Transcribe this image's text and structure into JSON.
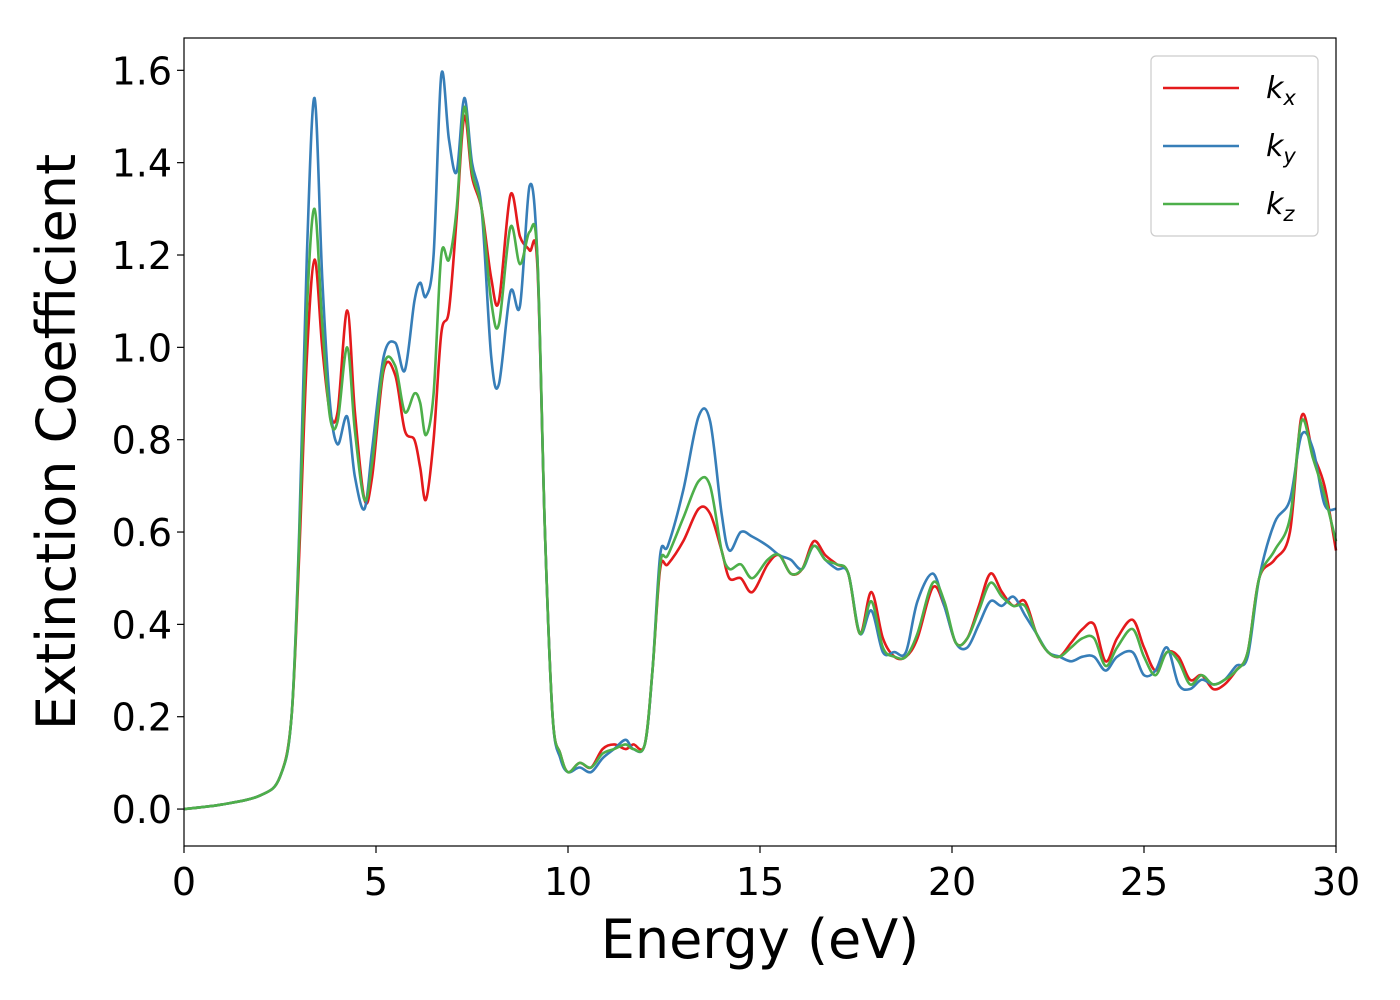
{
  "chart_data": {
    "type": "line",
    "title": "",
    "xlabel": "Energy (eV)",
    "ylabel": "Extinction Coefficient",
    "xlim": [
      0,
      30
    ],
    "ylim": [
      -0.08,
      1.67
    ],
    "xticks": [
      0,
      5,
      10,
      15,
      20,
      25,
      30
    ],
    "xtick_labels": [
      "0",
      "5",
      "10",
      "15",
      "20",
      "25",
      "30"
    ],
    "yticks": [
      0.0,
      0.2,
      0.4,
      0.6,
      0.8,
      1.0,
      1.2,
      1.4,
      1.6
    ],
    "ytick_labels": [
      "0.0",
      "0.2",
      "0.4",
      "0.6",
      "0.8",
      "1.0",
      "1.2",
      "1.4",
      "1.6"
    ],
    "grid": false,
    "legend_position": "top-right",
    "series": [
      {
        "name": "k_x",
        "label_main": "k",
        "label_sub": "x",
        "color": "#e41a1c",
        "x": [
          0,
          1,
          2,
          2.5,
          2.8,
          3.0,
          3.2,
          3.4,
          3.6,
          3.8,
          4.0,
          4.25,
          4.45,
          4.7,
          4.9,
          5.2,
          5.5,
          5.75,
          6.0,
          6.15,
          6.3,
          6.5,
          6.7,
          6.9,
          7.1,
          7.3,
          7.5,
          7.75,
          8.0,
          8.2,
          8.5,
          8.75,
          9.0,
          9.2,
          9.4,
          9.6,
          9.8,
          10.0,
          10.3,
          10.6,
          10.9,
          11.2,
          11.5,
          11.7,
          12.0,
          12.2,
          12.4,
          12.6,
          13.0,
          13.4,
          13.7,
          14.0,
          14.2,
          14.5,
          14.8,
          15.2,
          15.5,
          15.8,
          16.1,
          16.4,
          16.7,
          17.0,
          17.3,
          17.6,
          17.9,
          18.2,
          18.5,
          18.8,
          19.1,
          19.5,
          19.8,
          20.1,
          20.4,
          20.7,
          21.0,
          21.3,
          21.6,
          21.9,
          22.2,
          22.5,
          22.8,
          23.1,
          23.4,
          23.7,
          24.0,
          24.3,
          24.7,
          25.0,
          25.3,
          25.6,
          25.9,
          26.2,
          26.5,
          26.8,
          27.1,
          27.4,
          27.7,
          28.0,
          28.4,
          28.8,
          29.1,
          29.4,
          29.7,
          30.0
        ],
        "values": [
          0.0,
          0.01,
          0.03,
          0.07,
          0.2,
          0.55,
          0.98,
          1.19,
          1.0,
          0.86,
          0.86,
          1.08,
          0.86,
          0.67,
          0.72,
          0.95,
          0.94,
          0.82,
          0.8,
          0.74,
          0.67,
          0.8,
          1.03,
          1.08,
          1.28,
          1.5,
          1.37,
          1.3,
          1.15,
          1.1,
          1.33,
          1.24,
          1.21,
          1.18,
          0.6,
          0.2,
          0.12,
          0.08,
          0.1,
          0.09,
          0.13,
          0.14,
          0.13,
          0.14,
          0.14,
          0.3,
          0.52,
          0.53,
          0.58,
          0.65,
          0.64,
          0.56,
          0.5,
          0.5,
          0.47,
          0.53,
          0.55,
          0.51,
          0.52,
          0.58,
          0.55,
          0.53,
          0.51,
          0.38,
          0.47,
          0.37,
          0.33,
          0.33,
          0.37,
          0.48,
          0.44,
          0.36,
          0.37,
          0.44,
          0.51,
          0.47,
          0.44,
          0.45,
          0.38,
          0.34,
          0.33,
          0.36,
          0.39,
          0.4,
          0.32,
          0.37,
          0.41,
          0.35,
          0.3,
          0.34,
          0.33,
          0.28,
          0.29,
          0.26,
          0.27,
          0.3,
          0.34,
          0.5,
          0.54,
          0.6,
          0.85,
          0.77,
          0.7,
          0.56
        ]
      },
      {
        "name": "k_y",
        "label_main": "k",
        "label_sub": "y",
        "color": "#377eb8",
        "x": [
          0,
          1,
          2,
          2.5,
          2.8,
          3.0,
          3.2,
          3.4,
          3.6,
          3.8,
          4.0,
          4.25,
          4.45,
          4.7,
          4.9,
          5.2,
          5.5,
          5.75,
          6.0,
          6.15,
          6.3,
          6.5,
          6.7,
          6.9,
          7.1,
          7.3,
          7.5,
          7.75,
          8.0,
          8.2,
          8.5,
          8.75,
          9.0,
          9.2,
          9.4,
          9.6,
          9.8,
          10.0,
          10.3,
          10.6,
          10.9,
          11.2,
          11.5,
          11.7,
          12.0,
          12.2,
          12.4,
          12.6,
          13.0,
          13.4,
          13.7,
          14.0,
          14.2,
          14.5,
          14.8,
          15.2,
          15.5,
          15.8,
          16.1,
          16.4,
          16.7,
          17.0,
          17.3,
          17.6,
          17.9,
          18.2,
          18.5,
          18.8,
          19.1,
          19.5,
          19.8,
          20.1,
          20.4,
          20.7,
          21.0,
          21.3,
          21.6,
          21.9,
          22.2,
          22.5,
          22.8,
          23.1,
          23.4,
          23.7,
          24.0,
          24.3,
          24.7,
          25.0,
          25.3,
          25.6,
          25.9,
          26.2,
          26.5,
          26.8,
          27.1,
          27.4,
          27.7,
          28.0,
          28.4,
          28.8,
          29.1,
          29.4,
          29.7,
          30.0
        ],
        "values": [
          0.0,
          0.01,
          0.03,
          0.07,
          0.2,
          0.6,
          1.2,
          1.54,
          1.15,
          0.88,
          0.79,
          0.85,
          0.72,
          0.65,
          0.78,
          0.98,
          1.01,
          0.95,
          1.1,
          1.14,
          1.11,
          1.2,
          1.59,
          1.45,
          1.38,
          1.54,
          1.4,
          1.3,
          0.98,
          0.92,
          1.12,
          1.09,
          1.35,
          1.2,
          0.6,
          0.2,
          0.11,
          0.08,
          0.09,
          0.08,
          0.11,
          0.13,
          0.15,
          0.13,
          0.14,
          0.3,
          0.55,
          0.57,
          0.69,
          0.85,
          0.84,
          0.64,
          0.56,
          0.6,
          0.59,
          0.57,
          0.55,
          0.54,
          0.52,
          0.57,
          0.54,
          0.52,
          0.51,
          0.38,
          0.43,
          0.34,
          0.34,
          0.34,
          0.45,
          0.51,
          0.44,
          0.36,
          0.35,
          0.4,
          0.45,
          0.44,
          0.46,
          0.42,
          0.38,
          0.34,
          0.33,
          0.32,
          0.33,
          0.33,
          0.3,
          0.33,
          0.34,
          0.29,
          0.3,
          0.35,
          0.27,
          0.26,
          0.28,
          0.27,
          0.28,
          0.31,
          0.33,
          0.5,
          0.62,
          0.67,
          0.81,
          0.78,
          0.66,
          0.65
        ]
      },
      {
        "name": "k_z",
        "label_main": "k",
        "label_sub": "z",
        "color": "#4daf4a",
        "x": [
          0,
          1,
          2,
          2.5,
          2.8,
          3.0,
          3.2,
          3.4,
          3.6,
          3.8,
          4.0,
          4.25,
          4.45,
          4.7,
          4.9,
          5.2,
          5.5,
          5.75,
          6.0,
          6.15,
          6.3,
          6.5,
          6.7,
          6.9,
          7.1,
          7.3,
          7.5,
          7.75,
          8.0,
          8.2,
          8.5,
          8.75,
          9.0,
          9.2,
          9.4,
          9.6,
          9.8,
          10.0,
          10.3,
          10.6,
          10.9,
          11.2,
          11.5,
          11.7,
          12.0,
          12.2,
          12.4,
          12.6,
          13.0,
          13.4,
          13.7,
          14.0,
          14.2,
          14.5,
          14.8,
          15.2,
          15.5,
          15.8,
          16.1,
          16.4,
          16.7,
          17.0,
          17.3,
          17.6,
          17.9,
          18.2,
          18.5,
          18.8,
          19.1,
          19.5,
          19.8,
          20.1,
          20.4,
          20.7,
          21.0,
          21.3,
          21.6,
          21.9,
          22.2,
          22.5,
          22.8,
          23.1,
          23.4,
          23.7,
          24.0,
          24.3,
          24.7,
          25.0,
          25.3,
          25.6,
          25.9,
          26.2,
          26.5,
          26.8,
          27.1,
          27.4,
          27.7,
          28.0,
          28.4,
          28.8,
          29.1,
          29.4,
          29.7,
          30.0
        ],
        "values": [
          0.0,
          0.01,
          0.03,
          0.07,
          0.2,
          0.58,
          1.08,
          1.3,
          1.05,
          0.85,
          0.84,
          1.0,
          0.82,
          0.67,
          0.75,
          0.96,
          0.96,
          0.86,
          0.9,
          0.88,
          0.81,
          0.9,
          1.2,
          1.19,
          1.3,
          1.52,
          1.38,
          1.3,
          1.1,
          1.05,
          1.26,
          1.18,
          1.25,
          1.2,
          0.6,
          0.2,
          0.12,
          0.08,
          0.1,
          0.09,
          0.12,
          0.13,
          0.14,
          0.13,
          0.14,
          0.3,
          0.53,
          0.55,
          0.63,
          0.71,
          0.7,
          0.56,
          0.52,
          0.53,
          0.5,
          0.54,
          0.55,
          0.51,
          0.52,
          0.57,
          0.54,
          0.53,
          0.51,
          0.38,
          0.45,
          0.35,
          0.33,
          0.33,
          0.38,
          0.49,
          0.45,
          0.36,
          0.37,
          0.43,
          0.49,
          0.46,
          0.44,
          0.44,
          0.38,
          0.34,
          0.33,
          0.35,
          0.37,
          0.37,
          0.31,
          0.35,
          0.39,
          0.33,
          0.29,
          0.34,
          0.32,
          0.27,
          0.29,
          0.27,
          0.28,
          0.3,
          0.34,
          0.5,
          0.56,
          0.63,
          0.84,
          0.76,
          0.68,
          0.58
        ]
      }
    ]
  }
}
